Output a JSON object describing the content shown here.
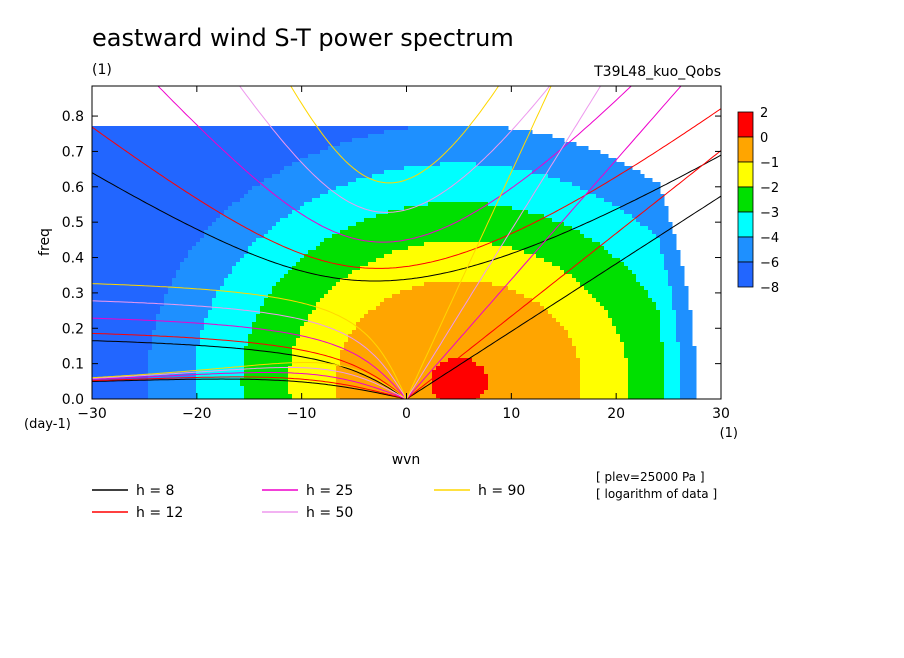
{
  "chart_data": {
    "type": "heatmap",
    "title": "eastward wind S-T power spectrum",
    "subtitle": "(1)",
    "run_label": "T39L48_kuo_Qobs",
    "xlabel": "wvn",
    "xunit": "(1)",
    "ylabel": "freq",
    "yunit": "(day-1)",
    "xlim": [
      -30,
      30
    ],
    "ylim": [
      0,
      0.885
    ],
    "x_ticks": [
      "−30",
      "−20",
      "−10",
      "0",
      "10",
      "20",
      "30"
    ],
    "y_ticks": [
      "0.0",
      "0.1",
      "0.2",
      "0.3",
      "0.4",
      "0.5",
      "0.6",
      "0.7",
      "0.8"
    ],
    "colorbar": {
      "labels": [
        "2",
        "0",
        "−1",
        "−2",
        "−3",
        "−4",
        "−6",
        "−8"
      ],
      "colors": [
        "#ff0000",
        "#ffa500",
        "#ffff00",
        "#00e000",
        "#00ffff",
        "#1e90ff",
        "#2266ff"
      ]
    },
    "field": {
      "peak_wvn": 5,
      "peak_freq": 0.05,
      "peak_value": 2.6,
      "wvn_scale": 9,
      "freq_scale": 0.22,
      "right_edge_drop_start": 24
    },
    "dispersion_curves": [
      {
        "h": 8,
        "name": "h =  8",
        "color": "#000000"
      },
      {
        "h": 12,
        "name": "h = 12",
        "color": "#ff0000"
      },
      {
        "h": 25,
        "name": "h = 25",
        "color": "#ee00cc"
      },
      {
        "h": 50,
        "name": "h = 50",
        "color": "#ee99ee"
      },
      {
        "h": 90,
        "name": "h = 90",
        "color": "#ffd700"
      }
    ],
    "notes": [
      "[ plev=25000 Pa ]",
      "[ logarithm of data ]"
    ]
  }
}
